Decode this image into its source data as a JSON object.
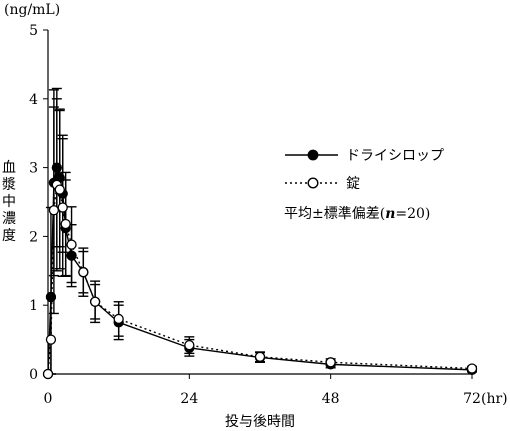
{
  "chart_data": {
    "type": "line",
    "x_unit": "(hr)",
    "y_unit": "(ng/mL)",
    "xlabel": "投与後時間",
    "ylabel": "血漿中濃度",
    "xlim": [
      0,
      72
    ],
    "ylim": [
      0,
      5
    ],
    "x_ticks": [
      0,
      24,
      48,
      72
    ],
    "y_ticks": [
      0,
      1,
      2,
      3,
      4,
      5
    ],
    "annotation": "平均±標準偏差(n=20)",
    "annotation_n": "n",
    "annotation_prefix": "平均±標準偏差(",
    "annotation_suffix": "=20)",
    "grid": false,
    "legend_position": "right",
    "series": [
      {
        "name": "ドライシロップ",
        "marker": "filled-circle",
        "line_style": "solid",
        "color": "#000000",
        "x": [
          0,
          0.5,
          1,
          1.5,
          2,
          2.5,
          3,
          4,
          6,
          8,
          12,
          24,
          36,
          48,
          72
        ],
        "y": [
          0,
          1.12,
          2.78,
          3.0,
          2.85,
          2.62,
          2.12,
          1.72,
          1.48,
          1.05,
          0.75,
          0.38,
          0.24,
          0.14,
          0.06
        ],
        "sd": [
          0,
          1.3,
          1.35,
          1.15,
          1.0,
          0.85,
          0.7,
          0.45,
          0.3,
          0.25,
          0.25,
          0.12,
          0.07,
          0.05,
          0.03
        ]
      },
      {
        "name": "錠",
        "marker": "open-circle",
        "line_style": "dotted",
        "color": "#000000",
        "x": [
          0,
          0.5,
          1,
          1.5,
          2,
          2.5,
          3,
          4,
          6,
          8,
          12,
          24,
          36,
          48,
          72
        ],
        "y": [
          0,
          0.5,
          2.38,
          2.75,
          2.68,
          2.42,
          2.18,
          1.88,
          1.48,
          1.05,
          0.8,
          0.42,
          0.25,
          0.17,
          0.08
        ],
        "sd": [
          0,
          0.6,
          1.5,
          1.25,
          1.15,
          1.0,
          0.75,
          0.55,
          0.35,
          0.3,
          0.25,
          0.12,
          0.07,
          0.05,
          0.03
        ]
      }
    ]
  }
}
